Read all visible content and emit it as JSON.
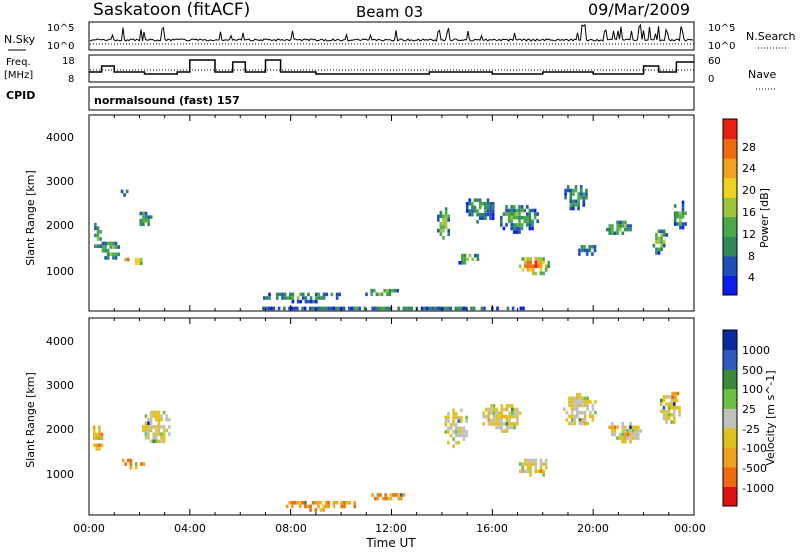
{
  "header": {
    "station": "Saskatoon (fitACF)",
    "beam": "Beam 03",
    "date": "09/Mar/2009"
  },
  "colors": {
    "power_scale": [
      "#0a1ef0",
      "#1f4fb8",
      "#2e8a5a",
      "#4aa84a",
      "#9cc43a",
      "#f0d020",
      "#f5a020",
      "#f06a10",
      "#e82010"
    ],
    "velocity_scale": [
      "#0a2aa0",
      "#2f5bc0",
      "#3a8a3a",
      "#6cc040",
      "#c0c0b8",
      "#e0c020",
      "#f0a020",
      "#f06a10",
      "#e01010"
    ]
  },
  "top_panels": {
    "nsky": {
      "label": "N.Sky",
      "right_label": "N.Search",
      "left_ticks": [
        "10^5",
        "10^0"
      ],
      "right_ticks": [
        "10^5",
        "10^0"
      ]
    },
    "freq": {
      "label_line1": "Freq.",
      "label_line2": "[MHz]",
      "right_label": "Nave",
      "left_ticks": [
        "18",
        "8"
      ],
      "right_ticks": [
        "60",
        "0"
      ]
    },
    "cpid": {
      "label": "CPID",
      "value": "normalsound (fast) 157"
    }
  },
  "chart_data": [
    {
      "type": "heatmap",
      "title": "",
      "xlabel": "Time UT",
      "ylabel": "Slant Range [km]",
      "colorbar_label": "Power [dB]",
      "colorbar_ticks": [
        "28",
        "24",
        "20",
        "16",
        "12",
        "8",
        "4"
      ],
      "x_ticks": [
        "00:00",
        "04:00",
        "08:00",
        "12:00",
        "16:00",
        "20:00",
        "00:00"
      ],
      "y_ticks": [
        "4000",
        "3000",
        "2000",
        "1000"
      ],
      "xlim_hours": [
        0,
        24
      ],
      "ylim_km": [
        180,
        4600
      ],
      "blobs": [
        {
          "t": 0.3,
          "r": 1900,
          "dt": 0.4,
          "dr": 700,
          "level": 0.35
        },
        {
          "t": 0.8,
          "r": 1600,
          "dt": 0.8,
          "dr": 450,
          "level": 0.45
        },
        {
          "t": 1.7,
          "r": 1350,
          "dt": 0.8,
          "dr": 220,
          "level": 0.9
        },
        {
          "t": 2.2,
          "r": 2300,
          "dt": 0.6,
          "dr": 400,
          "level": 0.3
        },
        {
          "t": 1.3,
          "r": 2900,
          "dt": 0.5,
          "dr": 200,
          "level": 0.25
        },
        {
          "t": 8.5,
          "r": 550,
          "dt": 3.4,
          "dr": 250,
          "level": 0.35
        },
        {
          "t": 11.5,
          "r": 650,
          "dt": 1.5,
          "dr": 220,
          "level": 0.4
        },
        {
          "t": 14.0,
          "r": 2200,
          "dt": 0.6,
          "dr": 800,
          "level": 0.5
        },
        {
          "t": 15.0,
          "r": 1400,
          "dt": 0.9,
          "dr": 300,
          "level": 0.55
        },
        {
          "t": 15.5,
          "r": 2500,
          "dt": 1.3,
          "dr": 600,
          "level": 0.3
        },
        {
          "t": 17.6,
          "r": 1250,
          "dt": 1.3,
          "dr": 450,
          "level": 0.9
        },
        {
          "t": 17.0,
          "r": 2300,
          "dt": 1.6,
          "dr": 700,
          "level": 0.35
        },
        {
          "t": 19.3,
          "r": 2800,
          "dt": 1.1,
          "dr": 600,
          "level": 0.35
        },
        {
          "t": 19.7,
          "r": 1600,
          "dt": 0.8,
          "dr": 300,
          "level": 0.3
        },
        {
          "t": 21.0,
          "r": 2100,
          "dt": 1.2,
          "dr": 400,
          "level": 0.4
        },
        {
          "t": 22.6,
          "r": 1800,
          "dt": 0.7,
          "dr": 600,
          "level": 0.4
        },
        {
          "t": 23.4,
          "r": 2400,
          "dt": 0.6,
          "dr": 700,
          "level": 0.35
        },
        {
          "t": 12.0,
          "r": 300,
          "dt": 11.5,
          "dr": 120,
          "level": 0.2
        }
      ]
    },
    {
      "type": "heatmap",
      "title": "",
      "xlabel": "Time UT",
      "ylabel": "Slant Range [km]",
      "colorbar_label": "Velocity [m s^-1]",
      "colorbar_ticks": [
        "1000",
        "500",
        "100",
        "25",
        "-25",
        "-100",
        "-500",
        "-1000"
      ],
      "x_ticks": [
        "00:00",
        "04:00",
        "08:00",
        "12:00",
        "16:00",
        "20:00",
        "00:00"
      ],
      "y_ticks": [
        "4000",
        "3000",
        "2000",
        "1000"
      ],
      "xlim_hours": [
        0,
        24
      ],
      "ylim_km": [
        180,
        4600
      ],
      "blobs": [
        {
          "t": 0.3,
          "r": 2000,
          "dt": 0.5,
          "dr": 700,
          "level": 0.72
        },
        {
          "t": 1.7,
          "r": 1400,
          "dt": 1.0,
          "dr": 250,
          "level": 0.8
        },
        {
          "t": 2.6,
          "r": 2200,
          "dt": 1.2,
          "dr": 800,
          "level": 0.55
        },
        {
          "t": 9.0,
          "r": 450,
          "dt": 3.2,
          "dr": 250,
          "level": 0.75
        },
        {
          "t": 11.8,
          "r": 650,
          "dt": 1.4,
          "dr": 200,
          "level": 0.8
        },
        {
          "t": 14.5,
          "r": 2200,
          "dt": 1.0,
          "dr": 900,
          "level": 0.55
        },
        {
          "t": 16.3,
          "r": 2400,
          "dt": 1.6,
          "dr": 700,
          "level": 0.55
        },
        {
          "t": 17.6,
          "r": 1300,
          "dt": 1.3,
          "dr": 450,
          "level": 0.55
        },
        {
          "t": 19.4,
          "r": 2600,
          "dt": 1.4,
          "dr": 800,
          "level": 0.55
        },
        {
          "t": 21.2,
          "r": 2100,
          "dt": 1.4,
          "dr": 500,
          "level": 0.55
        },
        {
          "t": 23.0,
          "r": 2600,
          "dt": 0.9,
          "dr": 700,
          "level": 0.55
        },
        {
          "t": 23.2,
          "r": 2900,
          "dt": 0.4,
          "dr": 250,
          "level": 0.8
        }
      ]
    }
  ]
}
